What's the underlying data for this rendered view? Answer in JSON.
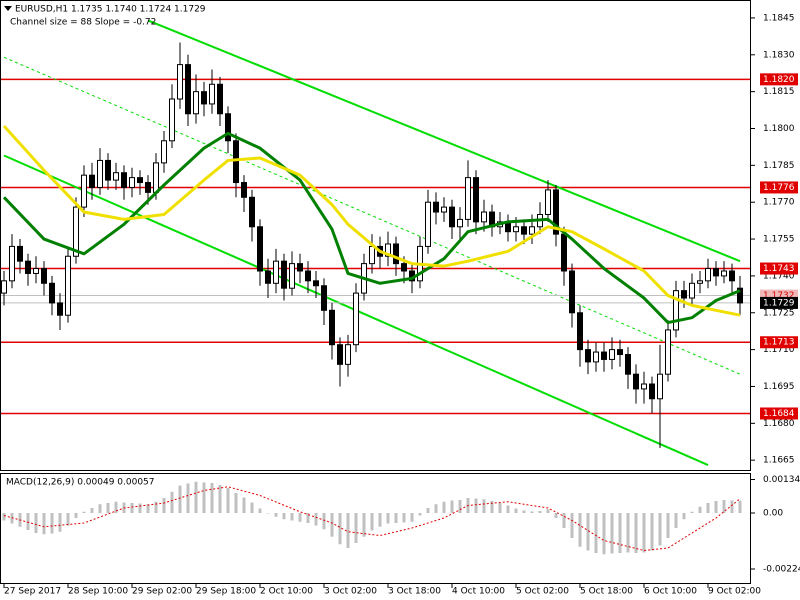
{
  "chart_data": {
    "type": "candlestick",
    "title": "EURUSD,H1  1.1735 1.1740 1.1724 1.1729",
    "subtitle": "Channel size = 88 Slope = -0.72",
    "xlim": [
      -0.5,
      93.25
    ],
    "ylim": [
      1.1661,
      1.18523
    ],
    "yticks": [
      1.1845,
      {
        "value": 1.183,
        "label": "1.1830"
      },
      1.1815,
      {
        "value": 1.18,
        "label": "1.1800"
      },
      1.1785,
      {
        "value": 1.177,
        "label": "1.1770"
      },
      1.1755,
      {
        "value": 1.174,
        "label": "1.1740"
      },
      1.1725,
      {
        "value": 1.171,
        "label": "1.1710"
      },
      1.1695,
      {
        "value": 1.168,
        "label": "1.1680"
      },
      1.1665
    ],
    "xticks": [
      {
        "value": 0,
        "label": "27 Sep 2017"
      },
      {
        "value": 8,
        "label": "28 Sep 10:00"
      },
      {
        "value": 16,
        "label": "29 Sep 02:00"
      },
      {
        "value": 24,
        "label": "29 Sep 18:00"
      },
      {
        "value": 32,
        "label": "2 Oct 10:00"
      },
      {
        "value": 40,
        "label": "3 Oct 02:00"
      },
      {
        "value": 48,
        "label": "3 Oct 18:00"
      },
      {
        "value": 56,
        "label": "4 Oct 10:00"
      },
      {
        "value": 64,
        "label": "5 Oct 02:00"
      },
      {
        "value": 72,
        "label": "5 Oct 18:00"
      },
      {
        "value": 80,
        "label": "6 Oct 10:00"
      },
      {
        "value": 88,
        "label": "9 Oct 02:00"
      }
    ],
    "candle_color": "#000000",
    "open": [
      1.1733,
      1.1738,
      1.1752,
      1.1746,
      1.1741,
      1.1743,
      1.1737,
      1.1729,
      1.1724,
      1.1748,
      1.1768,
      1.1781,
      1.1776,
      1.1787,
      1.1779,
      1.1782,
      1.1776,
      1.178,
      1.1778,
      1.1774,
      1.1786,
      1.1795,
      1.1812,
      1.1826,
      1.1806,
      1.1815,
      1.181,
      1.1818,
      1.1806,
      1.1795,
      1.1778,
      1.1772,
      1.176,
      1.1742,
      1.1737,
      1.1746,
      1.1735,
      1.1745,
      1.1742,
      1.1738,
      1.1736,
      1.1726,
      1.1712,
      1.1704,
      1.1712,
      1.1733,
      1.1745,
      1.1752,
      1.1748,
      1.1753,
      1.1745,
      1.1742,
      1.1738,
      1.1752,
      1.177,
      1.1766,
      1.1768,
      1.176,
      1.1763,
      1.178,
      1.1762,
      1.1766,
      1.176,
      1.1762,
      1.1758,
      1.176,
      1.1757,
      1.176,
      1.1765,
      1.1775,
      1.1757,
      1.1742,
      1.1725,
      1.171,
      1.1705,
      1.1709,
      1.1706,
      1.171,
      1.1708,
      1.17,
      1.1694,
      1.1696,
      1.169,
      1.17,
      1.1718,
      1.1734,
      1.1731,
      1.1737,
      1.1738,
      1.1743,
      1.174,
      1.1742,
      1.1735
    ],
    "high": [
      1.1742,
      1.1757,
      1.1755,
      1.1749,
      1.1748,
      1.1746,
      1.174,
      1.1733,
      1.1751,
      1.1772,
      1.1785,
      1.1786,
      1.1792,
      1.179,
      1.1786,
      1.1785,
      1.1784,
      1.1783,
      1.1781,
      1.179,
      1.1799,
      1.1818,
      1.1835,
      1.183,
      1.1822,
      1.1819,
      1.1824,
      1.1821,
      1.1809,
      1.1798,
      1.1781,
      1.1775,
      1.1763,
      1.1747,
      1.1751,
      1.1749,
      1.175,
      1.1749,
      1.1746,
      1.1742,
      1.1739,
      1.1729,
      1.1715,
      1.1716,
      1.1737,
      1.1749,
      1.1757,
      1.1756,
      1.1758,
      1.1756,
      1.1748,
      1.1745,
      1.1756,
      1.1775,
      1.1774,
      1.1772,
      1.1771,
      1.1768,
      1.1787,
      1.1783,
      1.1771,
      1.1769,
      1.1766,
      1.1765,
      1.1764,
      1.1763,
      1.1765,
      1.177,
      1.1779,
      1.1777,
      1.176,
      1.1745,
      1.1728,
      1.1714,
      1.1713,
      1.1713,
      1.1715,
      1.1714,
      1.1711,
      1.1704,
      1.1701,
      1.1699,
      1.1712,
      1.1722,
      1.1738,
      1.1738,
      1.1741,
      1.1742,
      1.1747,
      1.1746,
      1.1746,
      1.1745,
      1.174
    ],
    "low": [
      1.1728,
      1.1735,
      1.1741,
      1.1736,
      1.1737,
      1.1732,
      1.1724,
      1.1718,
      1.1721,
      1.1745,
      1.1764,
      1.1771,
      1.1773,
      1.1775,
      1.1775,
      1.1771,
      1.1772,
      1.1773,
      1.1769,
      1.1771,
      1.1782,
      1.1792,
      1.1808,
      1.1801,
      1.1802,
      1.1805,
      1.1806,
      1.1801,
      1.179,
      1.1772,
      1.1766,
      1.1754,
      1.1736,
      1.1731,
      1.1733,
      1.173,
      1.1732,
      1.1737,
      1.1733,
      1.1731,
      1.172,
      1.1706,
      1.1695,
      1.1699,
      1.1709,
      1.173,
      1.1741,
      1.1743,
      1.1744,
      1.174,
      1.1737,
      1.1733,
      1.1735,
      1.1749,
      1.1761,
      1.1762,
      1.1755,
      1.1754,
      1.176,
      1.1757,
      1.1758,
      1.1756,
      1.1757,
      1.1754,
      1.1754,
      1.1753,
      1.1753,
      1.1757,
      1.1762,
      1.1752,
      1.1736,
      1.1719,
      1.1703,
      1.17,
      1.1701,
      1.1701,
      1.1702,
      1.1703,
      1.1694,
      1.1688,
      1.1688,
      1.1684,
      1.167,
      1.1697,
      1.1715,
      1.1727,
      1.1728,
      1.1733,
      1.1735,
      1.1736,
      1.1737,
      1.1733,
      1.1724
    ],
    "close": [
      1.1738,
      1.1752,
      1.1746,
      1.1741,
      1.1743,
      1.1737,
      1.1729,
      1.1724,
      1.1748,
      1.1768,
      1.1781,
      1.1776,
      1.1787,
      1.1779,
      1.1782,
      1.1776,
      1.178,
      1.1778,
      1.1774,
      1.1786,
      1.1795,
      1.1812,
      1.1826,
      1.1806,
      1.1815,
      1.181,
      1.1818,
      1.1806,
      1.1795,
      1.1778,
      1.1772,
      1.176,
      1.1742,
      1.1737,
      1.1746,
      1.1735,
      1.1745,
      1.1742,
      1.1738,
      1.1736,
      1.1726,
      1.1712,
      1.1704,
      1.1712,
      1.1733,
      1.1745,
      1.1752,
      1.1748,
      1.1753,
      1.1745,
      1.1742,
      1.1738,
      1.1752,
      1.177,
      1.1766,
      1.1768,
      1.176,
      1.1763,
      1.178,
      1.1762,
      1.1766,
      1.176,
      1.1762,
      1.1758,
      1.176,
      1.1757,
      1.176,
      1.1765,
      1.1775,
      1.1757,
      1.1742,
      1.1725,
      1.171,
      1.1705,
      1.1709,
      1.1706,
      1.171,
      1.1708,
      1.17,
      1.1694,
      1.1696,
      1.169,
      1.17,
      1.1718,
      1.1734,
      1.1731,
      1.1737,
      1.1738,
      1.1743,
      1.174,
      1.1742,
      1.1738,
      1.1729
    ],
    "overlays": [
      {
        "color": "#008000",
        "width": 3,
        "x": [
          0,
          5,
          10,
          15,
          20,
          25,
          28,
          32,
          37,
          41,
          43,
          47,
          51,
          55,
          58,
          63,
          68,
          71,
          75,
          80,
          83,
          86,
          89,
          92
        ],
        "values": [
          1.1772,
          1.1755,
          1.1749,
          1.1761,
          1.1777,
          1.1792,
          1.1798,
          1.1792,
          1.1779,
          1.1759,
          1.1741,
          1.1737,
          1.1739,
          1.1747,
          1.1758,
          1.1762,
          1.1763,
          1.1755,
          1.1743,
          1.1731,
          1.1721,
          1.1723,
          1.173,
          1.1734
        ]
      },
      {
        "color": "#f0e000",
        "width": 3,
        "x": [
          0,
          5,
          10,
          15,
          20,
          25,
          28,
          32,
          37,
          41,
          43,
          47,
          51,
          55,
          58,
          63,
          68,
          71,
          75,
          80,
          83,
          86,
          89,
          92
        ],
        "values": [
          1.1801,
          1.1783,
          1.1766,
          1.1763,
          1.1765,
          1.1779,
          1.1787,
          1.1788,
          1.1781,
          1.1769,
          1.1761,
          1.175,
          1.1745,
          1.1744,
          1.1746,
          1.175,
          1.176,
          1.1758,
          1.1751,
          1.1742,
          1.1732,
          1.1728,
          1.1726,
          1.1724
        ]
      }
    ],
    "trendlines": [
      {
        "color": "#00dd00",
        "dash": false,
        "x": [
          18,
          92
        ],
        "values": [
          1.1844,
          1.1746
        ]
      },
      {
        "color": "#00dd00",
        "dash": false,
        "x": [
          0,
          88
        ],
        "values": [
          1.1789,
          1.1663
        ]
      },
      {
        "color": "#00dd00",
        "dash": true,
        "x": [
          0,
          92
        ],
        "values": [
          1.1829,
          1.17
        ]
      }
    ],
    "level_color": "#e00000",
    "levels": [
      {
        "value": 1.182,
        "label": "1.1820"
      },
      1.1776,
      1.1743,
      1.1713,
      1.1684
    ],
    "markers": [
      {
        "value": 1.1732,
        "color": "#f2b8b8",
        "text_color": "#d00000"
      },
      {
        "value": 1.1729,
        "color": "#000000",
        "text_color": "#ffffff"
      }
    ],
    "macd": {
      "type": "bar",
      "title": "MACD(12,26,9) 0.00049 0.00057",
      "ylim": [
        -0.0028,
        0.0016
      ],
      "yticks": [
        0.00134,
        {
          "value": 0,
          "label": "0.00"
        },
        -0.00224
      ],
      "color": "#c0c0c0",
      "values": [
        -0.0003,
        -0.00042,
        -0.00055,
        -0.00068,
        -0.0008,
        -0.00085,
        -0.00082,
        -0.00075,
        -0.0005,
        -0.0002,
        5e-05,
        0.0002,
        0.00035,
        0.0004,
        0.00045,
        0.00042,
        0.0004,
        0.00038,
        0.00035,
        0.00045,
        0.0006,
        0.00085,
        0.0011,
        0.00118,
        0.00125,
        0.00122,
        0.0012,
        0.00112,
        0.001,
        0.0008,
        0.00062,
        0.00042,
        0.00018,
        0,
        -0.00015,
        -0.00025,
        -0.0003,
        -0.00035,
        -0.0004,
        -0.0005,
        -0.00065,
        -0.00095,
        -0.00125,
        -0.0014,
        -0.0012,
        -0.00095,
        -0.0007,
        -0.00055,
        -0.00042,
        -0.0004,
        -0.00038,
        -0.00035,
        -0.0001,
        0.0002,
        0.00035,
        0.00045,
        0.0005,
        0.00052,
        0.0006,
        0.00058,
        0.00055,
        0.00048,
        0.0004,
        0.0003,
        0.00018,
        0.0001,
        6e-05,
        8e-05,
        0.00015,
        -0.0002,
        -0.0006,
        -0.001,
        -0.00135,
        -0.0015,
        -0.0016,
        -0.00165,
        -0.00162,
        -0.0016,
        -0.00158,
        -0.0016,
        -0.00158,
        -0.0015,
        -0.0013,
        -0.001,
        -0.0006,
        -0.00025,
        5e-05,
        0.00025,
        0.0004,
        0.00048,
        0.00052,
        0.0005,
        0.00049
      ],
      "signal": {
        "color": "#e00000",
        "x": [
          0,
          5,
          10,
          15,
          20,
          25,
          28,
          32,
          37,
          41,
          43,
          47,
          51,
          55,
          58,
          63,
          68,
          71,
          75,
          80,
          83,
          86,
          89,
          92
        ],
        "values": [
          -0.0001,
          -0.00055,
          -0.0004,
          0.0002,
          0.0004,
          0.0009,
          0.00105,
          0.0007,
          5e-05,
          -0.0004,
          -0.00075,
          -0.0009,
          -0.0006,
          -0.0002,
          0.0003,
          0.00045,
          0.0002,
          -0.0003,
          -0.0011,
          -0.0015,
          -0.0014,
          -0.0008,
          -0.0002,
          0.00057
        ]
      }
    }
  }
}
